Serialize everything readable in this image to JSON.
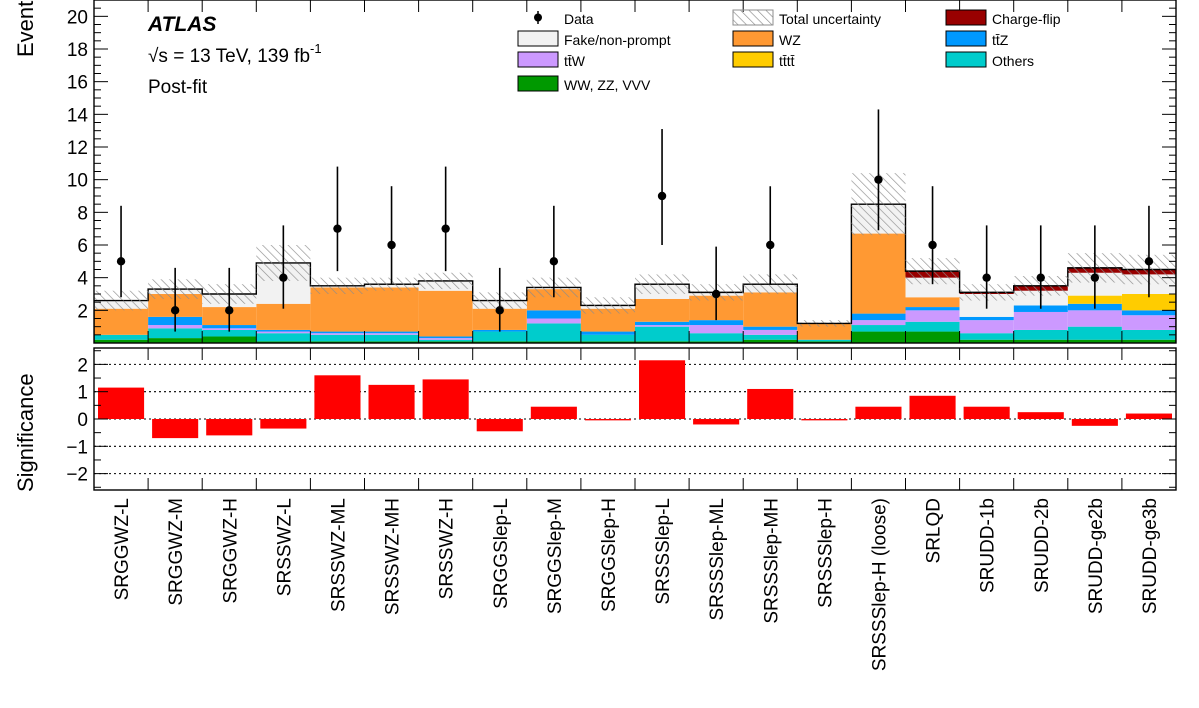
{
  "chart_data": [
    {
      "type": "bar",
      "stacked": true,
      "ylabel": "Events",
      "ylim": [
        0,
        21
      ],
      "y_ticks": [
        2,
        4,
        6,
        8,
        10,
        12,
        14,
        16,
        18,
        20
      ],
      "categories": [
        "SRGGWZ-L",
        "SRGGWZ-M",
        "SRGGWZ-H",
        "SRSSWZ-L",
        "SRSSWZ-ML",
        "SRSSWZ-MH",
        "SRSSWZ-H",
        "SRGGSlep-L",
        "SRGGSlep-M",
        "SRGGSlep-H",
        "SRSSSlep-L",
        "SRSSSlep-ML",
        "SRSSSlep-MH",
        "SRSSSlep-H",
        "SRSSSlep-H (loose)",
        "SRLQD",
        "SRUDD-1b",
        "SRUDD-2b",
        "SRUDD-ge2b",
        "SRUDD-ge3b"
      ],
      "series": [
        {
          "name": "WW, ZZ, VVV",
          "color": "#009900",
          "values": [
            0.2,
            0.3,
            0.4,
            0.1,
            0.1,
            0.1,
            0.1,
            0.1,
            0.1,
            0.1,
            0.1,
            0.1,
            0.2,
            0.1,
            0.7,
            0.7,
            0.2,
            0.2,
            0.2,
            0.2
          ]
        },
        {
          "name": "Others",
          "color": "#00cccc",
          "values": [
            0.3,
            0.6,
            0.4,
            0.5,
            0.4,
            0.4,
            0.1,
            0.6,
            1.1,
            0.4,
            0.9,
            0.5,
            0.3,
            0.1,
            0.4,
            0.6,
            0.4,
            0.6,
            0.8,
            0.6
          ]
        },
        {
          "name": "tt̄W",
          "color": "#cc99ff",
          "values": [
            0.0,
            0.2,
            0.1,
            0.1,
            0.1,
            0.1,
            0.1,
            0.0,
            0.3,
            0.0,
            0.1,
            0.5,
            0.3,
            0.0,
            0.3,
            0.7,
            0.8,
            1.1,
            1.0,
            0.9
          ]
        },
        {
          "name": "tt̄Z",
          "color": "#0099ff",
          "values": [
            0.0,
            0.5,
            0.2,
            0.1,
            0.1,
            0.1,
            0.1,
            0.1,
            0.5,
            0.2,
            0.2,
            0.3,
            0.2,
            0.0,
            0.4,
            0.2,
            0.2,
            0.4,
            0.4,
            0.3
          ]
        },
        {
          "name": "tt̄tt̄",
          "color": "#ffcc00",
          "values": [
            0.0,
            0.0,
            0.0,
            0.0,
            0.0,
            0.0,
            0.0,
            0.0,
            0.0,
            0.0,
            0.0,
            0.0,
            0.0,
            0.0,
            0.0,
            0.0,
            0.0,
            0.0,
            0.5,
            1.0
          ]
        },
        {
          "name": "WZ",
          "color": "#ff9933",
          "values": [
            1.6,
            1.4,
            1.1,
            1.6,
            2.7,
            2.7,
            2.8,
            1.3,
            1.3,
            1.4,
            1.4,
            1.5,
            2.1,
            1.0,
            4.9,
            0.6,
            0.0,
            0.0,
            0.0,
            0.0
          ]
        },
        {
          "name": "Fake/non-prompt",
          "color": "#f2f2f2",
          "values": [
            0.5,
            0.3,
            0.8,
            2.5,
            0.1,
            0.2,
            0.6,
            0.5,
            0.1,
            0.2,
            0.9,
            0.2,
            0.5,
            0.0,
            1.8,
            1.2,
            1.4,
            0.9,
            1.4,
            1.2
          ]
        },
        {
          "name": "Charge-flip",
          "color": "#990000",
          "values": [
            0.0,
            0.0,
            0.0,
            0.0,
            0.0,
            0.0,
            0.0,
            0.0,
            0.0,
            0.0,
            0.0,
            0.0,
            0.0,
            0.0,
            0.0,
            0.4,
            0.1,
            0.3,
            0.3,
            0.3
          ]
        }
      ],
      "total_uncertainty": {
        "name": "Total uncertainty",
        "values": [
          0.6,
          0.6,
          0.6,
          1.1,
          0.5,
          0.4,
          0.5,
          0.5,
          0.6,
          0.5,
          0.6,
          0.5,
          0.6,
          0.2,
          1.9,
          0.8,
          0.5,
          0.6,
          0.9,
          0.9
        ]
      },
      "data": {
        "name": "Data",
        "values": [
          5,
          2,
          2,
          4,
          7,
          6,
          7,
          2,
          5,
          0,
          9,
          3,
          6,
          0,
          10,
          6,
          4,
          4,
          4,
          5
        ],
        "err_low": [
          2.2,
          1.3,
          1.3,
          1.9,
          2.6,
          2.4,
          2.6,
          1.3,
          2.2,
          0,
          3.0,
          1.6,
          2.4,
          0,
          3.1,
          2.4,
          1.9,
          1.9,
          1.9,
          2.2
        ],
        "err_high": [
          3.4,
          2.6,
          2.6,
          3.2,
          3.8,
          3.6,
          3.8,
          2.6,
          3.4,
          0,
          4.1,
          2.9,
          3.6,
          0,
          4.3,
          3.6,
          3.2,
          3.2,
          3.2,
          3.4
        ]
      },
      "legend": [
        {
          "label": "Data",
          "kind": "marker"
        },
        {
          "label": "Total uncertainty",
          "kind": "hatch"
        },
        {
          "label": "Charge-flip",
          "kind": "fill",
          "color": "#990000"
        },
        {
          "label": "Fake/non-prompt",
          "kind": "fill",
          "color": "#f2f2f2"
        },
        {
          "label": "WZ",
          "kind": "fill",
          "color": "#ff9933"
        },
        {
          "label": "tt̄Z",
          "kind": "fill",
          "color": "#0099ff"
        },
        {
          "label": "tt̄W",
          "kind": "fill",
          "color": "#cc99ff"
        },
        {
          "label": "tt̄tt̄",
          "kind": "fill",
          "color": "#ffcc00"
        },
        {
          "label": "Others",
          "kind": "fill",
          "color": "#00cccc"
        },
        {
          "label": "WW, ZZ, VVV",
          "kind": "fill",
          "color": "#009900"
        }
      ],
      "legend_position": "top",
      "annotations": {
        "experiment": "ATLAS",
        "energy": "√s = 13 TeV, 139 fb",
        "energy_sup": "-1",
        "status": "Post-fit"
      }
    },
    {
      "type": "bar",
      "ylabel": "Significance",
      "ylim": [
        -2.6,
        2.6
      ],
      "y_ticks": [
        -2,
        -1,
        0,
        1,
        2
      ],
      "y_tick_labels": [
        "−2",
        "−1",
        "0",
        "1",
        "2"
      ],
      "grid_lines": [
        -2,
        -1,
        0,
        1,
        2
      ],
      "color": "#ff0000",
      "categories": [
        "SRGGWZ-L",
        "SRGGWZ-M",
        "SRGGWZ-H",
        "SRSSWZ-L",
        "SRSSWZ-ML",
        "SRSSWZ-MH",
        "SRSSWZ-H",
        "SRGGSlep-L",
        "SRGGSlep-M",
        "SRGGSlep-H",
        "SRSSSlep-L",
        "SRSSSlep-ML",
        "SRSSSlep-MH",
        "SRSSSlep-H",
        "SRSSSlep-H (loose)",
        "SRLQD",
        "SRUDD-1b",
        "SRUDD-2b",
        "SRUDD-ge2b",
        "SRUDD-ge3b"
      ],
      "values": [
        1.15,
        -0.7,
        -0.6,
        -0.35,
        1.6,
        1.25,
        1.45,
        -0.45,
        0.45,
        -0.05,
        2.15,
        -0.2,
        1.1,
        -0.05,
        0.45,
        0.85,
        0.45,
        0.25,
        -0.25,
        0.2
      ]
    }
  ]
}
